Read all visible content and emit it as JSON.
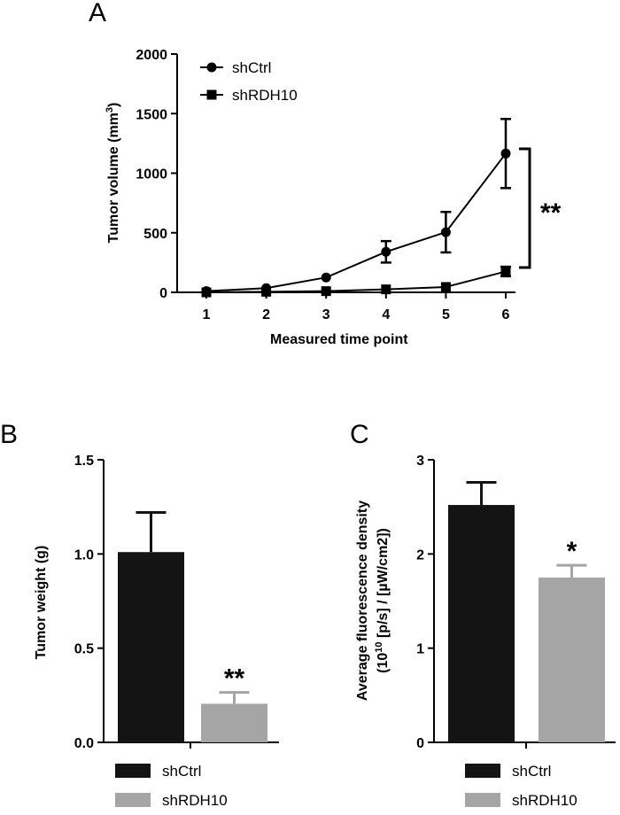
{
  "chart_data": [
    {
      "panel": "A",
      "type": "line",
      "title": "",
      "xlabel": "Measured time point",
      "ylabel_main": "Tumor volume (mm",
      "ylabel_sup": "3",
      "ylabel_end": ")",
      "x": [
        1,
        2,
        3,
        4,
        5,
        6
      ],
      "ylim": [
        0,
        2000
      ],
      "yticks": [
        0,
        500,
        1000,
        1500,
        2000
      ],
      "series": [
        {
          "name": "shCtrl",
          "marker": "circle",
          "values": [
            10,
            35,
            125,
            340,
            505,
            1165
          ],
          "errors": [
            0,
            0,
            0,
            90,
            170,
            290
          ]
        },
        {
          "name": "shRDH10",
          "marker": "square",
          "values": [
            0,
            5,
            10,
            25,
            45,
            175
          ],
          "errors": [
            0,
            0,
            0,
            0,
            0,
            40
          ]
        }
      ],
      "annotation": "**",
      "legend": "top-left"
    },
    {
      "panel": "B",
      "type": "bar",
      "ylabel": "Tumor weight (g)",
      "ylim": [
        0,
        1.5
      ],
      "yticks": [
        "0.0",
        "0.5",
        "1.0",
        "1.5"
      ],
      "categories": [
        "shCtrl",
        "shRDH10"
      ],
      "values": [
        1.01,
        0.205
      ],
      "errors": [
        0.21,
        0.06
      ],
      "colors": [
        "#141414",
        "#a5a5a5"
      ],
      "annotations": [
        "",
        "**"
      ]
    },
    {
      "panel": "C",
      "type": "bar",
      "ylabel_line1": "Average fluorescence density",
      "ylabel_line2_a": "(10",
      "ylabel_line2_sup": "10",
      "ylabel_line2_b": " [p/s] / [µW/cm2])",
      "ylim": [
        0,
        3
      ],
      "yticks": [
        "0",
        "1",
        "2",
        "3"
      ],
      "categories": [
        "shCtrl",
        "shRDH10"
      ],
      "values": [
        2.52,
        1.75
      ],
      "errors": [
        0.24,
        0.13
      ],
      "colors": [
        "#141414",
        "#a5a5a5"
      ],
      "annotations": [
        "",
        "*"
      ]
    }
  ],
  "legends": {
    "bottom_b": [
      "shCtrl",
      "shRDH10"
    ],
    "bottom_c": [
      "shCtrl",
      "shRDH10"
    ]
  }
}
